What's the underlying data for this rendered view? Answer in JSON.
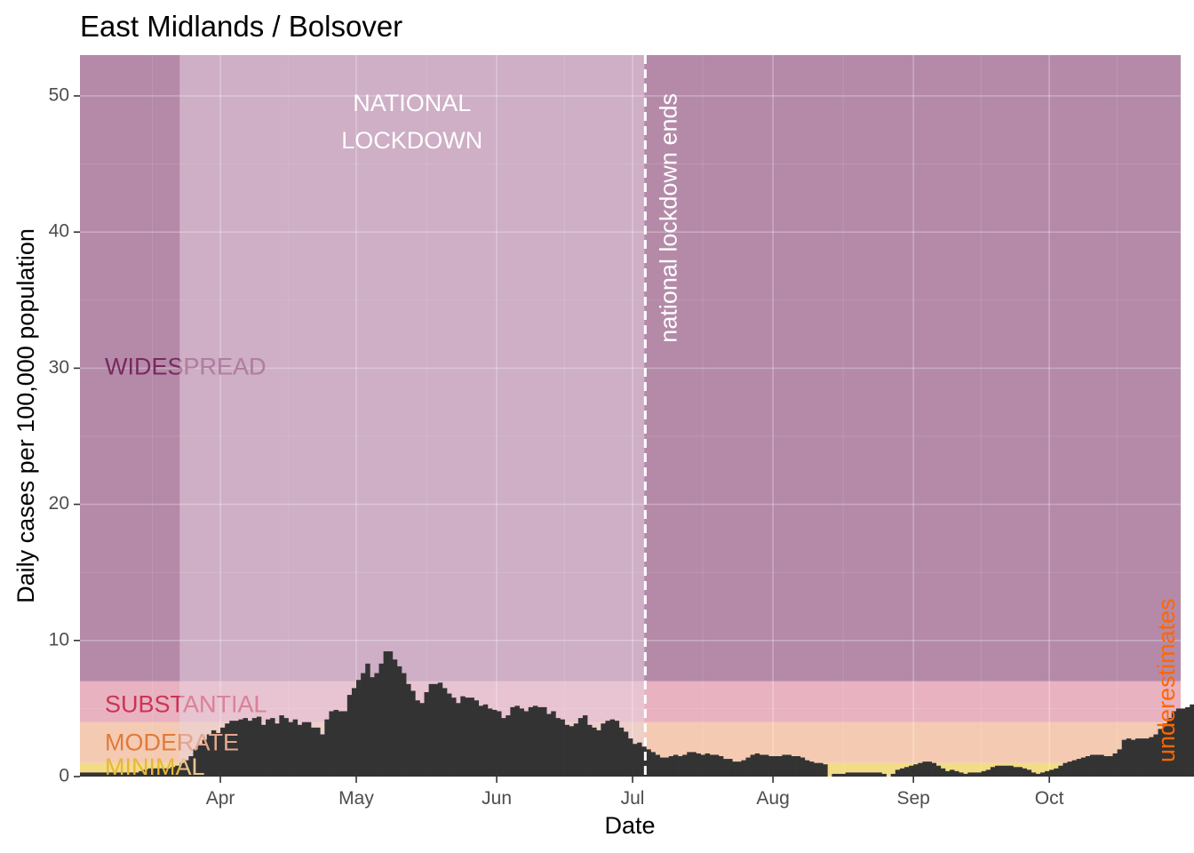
{
  "chart_data": {
    "type": "bar",
    "title": "East Midlands / Bolsover",
    "xlabel": "Date",
    "ylabel": "Daily cases per 100,000 population",
    "ylim": [
      0,
      53
    ],
    "y_ticks": [
      0,
      10,
      20,
      30,
      40,
      50
    ],
    "x_ticks": [
      {
        "label": "Apr",
        "date": "2020-04-01"
      },
      {
        "label": "May",
        "date": "2020-05-01"
      },
      {
        "label": "Jun",
        "date": "2020-06-01"
      },
      {
        "label": "Jul",
        "date": "2020-07-01"
      },
      {
        "label": "Aug",
        "date": "2020-08-01"
      },
      {
        "label": "Sep",
        "date": "2020-09-01"
      },
      {
        "label": "Oct",
        "date": "2020-10-01"
      }
    ],
    "x_range": [
      "2020-03-01",
      "2020-10-29"
    ],
    "grid": true,
    "bar_color": "#333333",
    "bands": [
      {
        "label": "MINIMAL",
        "from": 0,
        "to": 1,
        "color": "#f2dc86",
        "label_color": "#e8b63a"
      },
      {
        "label": "MODERATE",
        "from": 1,
        "to": 4,
        "color": "#f4cbb2",
        "label_color": "#e07a3c"
      },
      {
        "label": "SUBSTANTIAL",
        "from": 4,
        "to": 7,
        "color": "#e8b2c0",
        "label_color": "#cc3355"
      },
      {
        "label": "WIDESPREAD",
        "from": 7,
        "to": 53,
        "color": "#b48aa8",
        "label_color": "#7a2860"
      }
    ],
    "lockdown": {
      "label_lines": [
        "NATIONAL",
        "LOCKDOWN"
      ],
      "start": "2020-03-23",
      "end": "2020-07-04",
      "overlay_color": "#e8d4e2",
      "line_label": "national lockdown ends"
    },
    "underestimates_label": "underestimates",
    "underestimates_color": "#ff6600",
    "series": [
      {
        "start": "2020-03-01",
        "values": [
          0.3,
          0.3,
          0.3,
          0.3,
          0.3,
          0.3,
          0.3,
          0.3,
          0.3,
          0.3,
          0.3,
          0.3,
          0.3,
          0.4,
          0.5,
          0.6,
          0.6,
          0.6,
          0.6,
          0.6,
          0.7,
          0.8,
          1.0,
          1.2,
          1.5,
          2.0,
          2.4,
          2.7,
          3.1,
          3.4,
          3.2,
          3.6,
          3.9,
          4.1,
          4.1,
          4.2,
          4.3,
          4.1,
          4.3,
          4.4,
          3.8,
          4.2,
          4.3,
          3.9,
          4.5,
          4.3,
          4.0,
          4.2,
          3.8,
          4.0,
          4.0,
          3.6,
          3.6,
          3.1,
          4.2,
          4.8,
          4.9,
          4.8,
          4.8,
          6.0,
          6.5,
          7.1,
          7.6,
          8.3,
          7.3,
          7.6,
          8.3,
          9.2,
          9.2,
          8.6,
          8.1,
          7.6,
          6.8,
          6.3,
          5.6,
          5.4,
          6.2,
          6.8,
          6.8,
          6.9,
          6.5,
          6.1,
          5.8,
          5.4,
          5.9,
          5.8,
          5.8,
          5.6,
          5.2,
          5.3,
          5.0,
          4.9,
          4.8,
          4.3,
          4.5,
          5.1,
          5.2,
          5.0,
          4.8,
          5.1,
          5.2,
          5.1,
          5.1,
          4.6,
          4.8,
          4.3,
          4.2,
          3.8,
          3.7,
          3.9,
          4.3,
          4.5,
          3.8,
          3.6,
          3.4,
          3.9,
          4.1,
          4.2,
          4.1,
          3.6,
          3.3,
          2.8,
          2.4,
          2.5,
          2.2,
          2.0,
          1.8,
          1.6,
          1.4,
          1.4,
          1.5,
          1.6,
          1.5,
          1.6,
          1.8,
          1.8,
          1.7,
          1.6,
          1.7,
          1.6,
          1.6,
          1.5,
          1.3,
          1.3,
          1.1,
          1.1,
          1.2,
          1.4,
          1.6,
          1.7,
          1.6,
          1.6,
          1.5,
          1.5,
          1.5,
          1.6,
          1.6,
          1.5,
          1.5,
          1.4,
          1.2,
          1.1,
          1.0,
          1.0,
          0.9,
          0,
          0.2,
          0.2,
          0.2,
          0.3,
          0.3,
          0.3,
          0.3,
          0.3,
          0.3,
          0.3,
          0.3,
          0.2,
          0,
          0.2,
          0.5,
          0.6,
          0.7,
          0.8,
          0.9,
          1.0,
          1.1,
          1.1,
          1.0,
          0.8,
          0.6,
          0.4,
          0.5,
          0.4,
          0.3,
          0.2,
          0.3,
          0.3,
          0.3,
          0.4,
          0.5,
          0.7,
          0.8,
          0.8,
          0.8,
          0.8,
          0.7,
          0.7,
          0.6,
          0.5,
          0.3,
          0.2,
          0.3,
          0.4,
          0.5,
          0.6,
          0.8,
          1.0,
          1.1,
          1.2,
          1.3,
          1.4,
          1.5,
          1.6,
          1.6,
          1.6,
          1.5,
          1.5,
          1.7,
          2.0,
          2.7,
          2.8,
          2.7,
          2.8,
          2.8,
          2.8,
          2.9,
          3.1,
          3.5,
          3.9,
          4.3,
          4.8,
          5.0,
          5.0,
          5.1,
          5.3,
          5.4,
          5.4,
          5.1,
          4.9,
          3.4,
          3.2,
          3.2,
          3.3,
          3.3,
          3.8,
          5.4,
          5.7,
          6.0,
          6.2,
          6.0,
          6.0,
          6.3,
          6.6,
          8.4,
          8.6,
          8.1,
          8.5,
          8.1,
          8.1,
          7.7,
          6.8,
          7.7,
          7.7,
          8.6,
          8.8,
          9.1,
          10.0,
          11.2,
          12.4,
          13.9,
          14.4,
          16.6,
          16.3,
          17.1,
          18.1,
          17.1,
          18.2,
          19.0,
          19.8,
          20.3,
          21.5,
          23.1,
          24.1,
          25.1,
          27.2,
          30.9,
          34.2,
          37.5,
          40.0,
          41.9,
          45.4,
          46.6,
          49.0,
          47.6,
          48.0,
          49.5,
          49.5,
          50.5,
          52.9,
          51.4,
          49.9,
          47.4,
          43.2,
          44.2,
          44.8,
          43.4,
          42.4
        ]
      }
    ]
  }
}
